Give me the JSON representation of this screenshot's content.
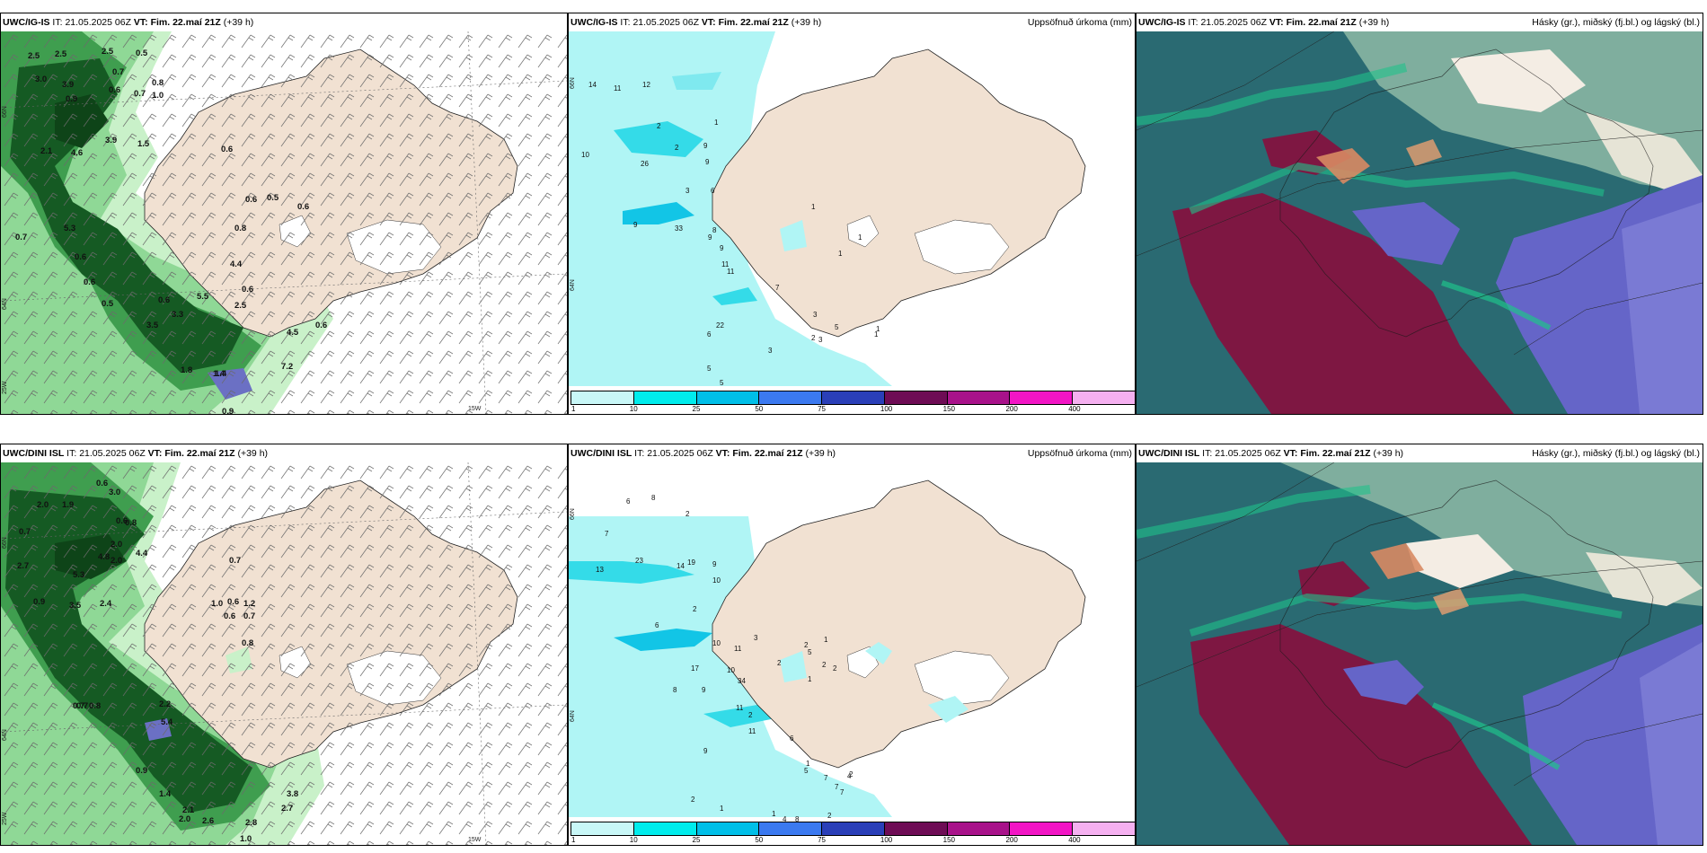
{
  "rows": [
    {
      "model": "UWC/IG-IS",
      "it_label": "IT:",
      "it_value": "21.05.2025 06Z",
      "vt_label": "VT:",
      "vt_value": "Fim. 22.maí 21Z",
      "lead": "(+39 h)",
      "left_labels": [
        "2.5",
        "2.5",
        "2.5",
        "0.5",
        "3.0",
        "3.9",
        "0.7",
        "0.9",
        "0.6",
        "0.7",
        "1.0",
        "0.8",
        "3.9",
        "1.5",
        "2.1",
        "4.6",
        "0.6",
        "0.5",
        "0.6",
        "0.6",
        "0.7",
        "5.3",
        "0.6",
        "0.6",
        "0.5",
        "2.5",
        "5.5",
        "0.6",
        "3.3",
        "3.5",
        "1.8",
        "1.4",
        "4.5",
        "7.2",
        "0.6",
        "0.6",
        "0.9",
        "1.4",
        "0.8",
        "4.4"
      ],
      "mid_labels": [
        "14",
        "11",
        "12",
        "10",
        "2",
        "2",
        "9",
        "1",
        "26",
        "9",
        "3",
        "6",
        "9",
        "9",
        "8",
        "33",
        "9",
        "11",
        "11",
        "7",
        "3",
        "6",
        "22",
        "1",
        "1",
        "1",
        "3",
        "2",
        "3",
        "5",
        "1",
        "1",
        "5",
        "5",
        "3",
        "3"
      ],
      "axis_labels": [
        "66N",
        "64N",
        "25W",
        "15W"
      ]
    },
    {
      "model": "UWC/DINI ISL",
      "it_label": "IT:",
      "it_value": "21.05.2025 06Z",
      "vt_label": "VT:",
      "vt_value": "Fim. 22.maí 21Z",
      "lead": "(+39 h)",
      "left_labels": [
        "0.6",
        "2.0",
        "1.9",
        "3.0",
        "0.7",
        "0.6",
        "0.8",
        "2.7",
        "5.3",
        "4.8",
        "2.0",
        "4.4",
        "2.0",
        "0.9",
        "3.5",
        "2.4",
        "0.7",
        "0.7",
        "0.6",
        "1.2",
        "1.0",
        "0.7",
        "0.6",
        "0.8",
        "0.7",
        "0.8",
        "2.2",
        "5.4",
        "0.9",
        "1.4",
        "2.1",
        "2.0",
        "2.6",
        "2.8",
        "1.0",
        "3.8",
        "2.7"
      ],
      "mid_labels": [
        "6",
        "8",
        "7",
        "2",
        "13",
        "23",
        "14",
        "19",
        "9",
        "10",
        "2",
        "6",
        "10",
        "11",
        "10",
        "34",
        "17",
        "8",
        "9",
        "11",
        "2",
        "11",
        "9",
        "6",
        "5",
        "1",
        "2",
        "1",
        "1",
        "2",
        "2",
        "7",
        "4",
        "8",
        "7",
        "4",
        "7",
        "5",
        "3",
        "2",
        "1",
        "2",
        "2",
        "1",
        "2"
      ],
      "axis_labels": [
        "66N",
        "64N",
        "25W",
        "15W"
      ]
    }
  ],
  "precip_title": "Uppsöfnuð úrkoma (mm)",
  "cloud_title": "Hásky (gr.), miðský (fj.bl.) og lágský (bl.)",
  "colorbar": {
    "ticks": [
      "1",
      "10",
      "25",
      "50",
      "75",
      "100",
      "150",
      "200",
      "400"
    ],
    "colors": [
      "#c8f7f7",
      "#00ecec",
      "#00bfe8",
      "#3b79f0",
      "#2a3fb8",
      "#6e0c55",
      "#a8128a",
      "#f215c5",
      "#f5b0f0"
    ]
  },
  "palette": {
    "land": "#f1e1d2",
    "sea_precip": "#b0f5f5",
    "cloud_low": "#27626a",
    "cloud_high": "#7e1742",
    "cloud_mid": "#6565c8",
    "cloud_green": "#1fc28a"
  }
}
